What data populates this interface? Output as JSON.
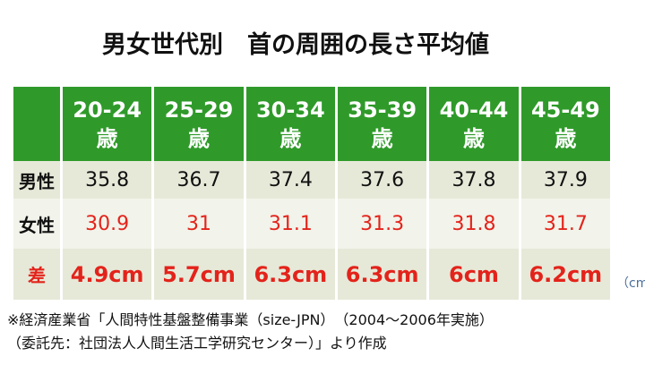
{
  "title": "男女世代別　首の周囲の長さ平均値",
  "table": {
    "header": [
      {
        "age": "20-24",
        "unit": "歳"
      },
      {
        "age": "25-29",
        "unit": "歳"
      },
      {
        "age": "30-34",
        "unit": "歳"
      },
      {
        "age": "35-39",
        "unit": "歳"
      },
      {
        "age": "40-44",
        "unit": "歳"
      },
      {
        "age": "45-49",
        "unit": "歳"
      }
    ],
    "rows": [
      {
        "label": "男性",
        "values": [
          "35.8",
          "36.7",
          "37.4",
          "37.6",
          "37.8",
          "37.9"
        ]
      },
      {
        "label": "女性",
        "values": [
          "30.9",
          "31",
          "31.1",
          "31.3",
          "31.8",
          "31.7"
        ]
      },
      {
        "label": "差",
        "values": [
          "4.9cm",
          "5.7cm",
          "6.3cm",
          "6.3cm",
          "6cm",
          "6.2cm"
        ]
      }
    ]
  },
  "unit_note": "（cm",
  "footnotes": [
    "※経済産業省「人間特性基盤整備事業（size-JPN）　（2004～2006年実施）",
    "（委託先：社団法人人間生活工学研究センター）」より作成"
  ]
}
